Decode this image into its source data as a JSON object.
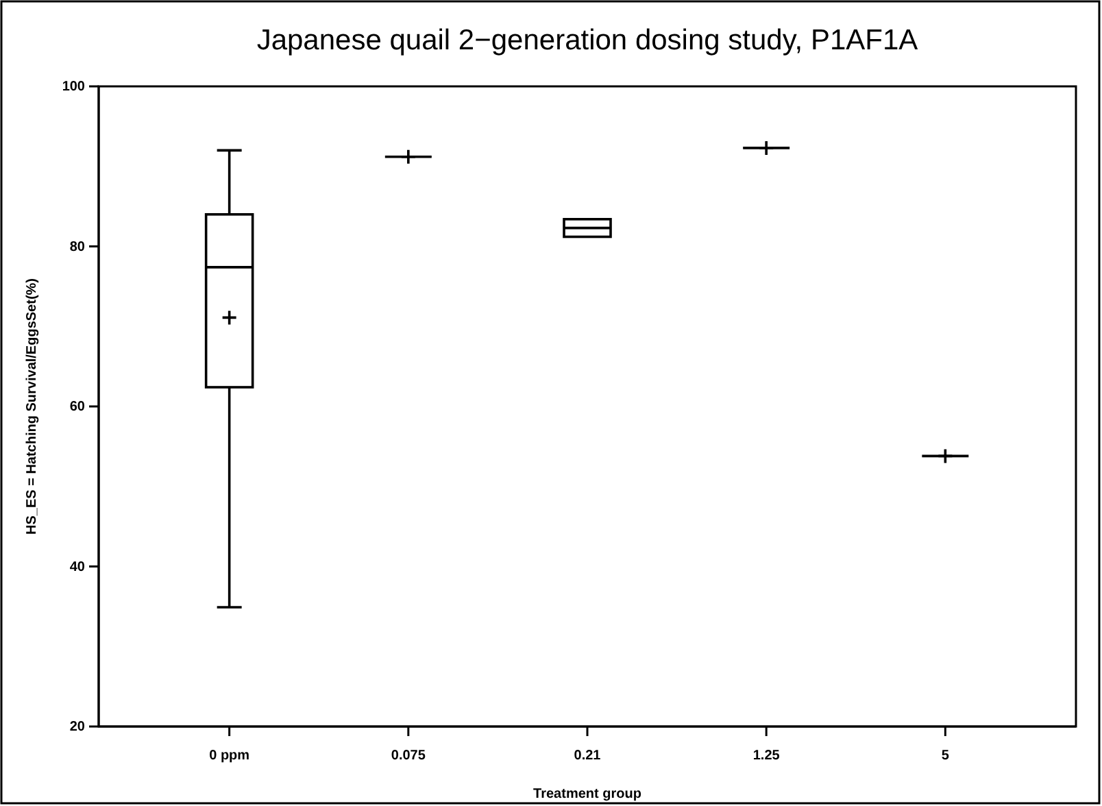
{
  "chart_data": {
    "type": "box",
    "title": "Japanese quail 2−generation dosing study, P1AF1A",
    "xlabel": "Treatment group",
    "ylabel": "HS_ES = Hatching Survival/EggsSet(%)",
    "categories": [
      "0 ppm",
      "0.075",
      "0.21",
      "1.25",
      "5"
    ],
    "boxes": [
      {
        "low": 34.9,
        "q1": 62.4,
        "median": 77.4,
        "q3": 84.0,
        "high": 92.0,
        "mean": 71.1
      },
      {
        "low": 91.2,
        "q1": 91.2,
        "median": 91.2,
        "q3": 91.2,
        "high": 91.2,
        "mean": 91.2
      },
      {
        "low": 81.2,
        "q1": 81.2,
        "median": 82.3,
        "q3": 83.4,
        "high": 83.4
      },
      {
        "low": 92.3,
        "q1": 92.3,
        "median": 92.3,
        "q3": 92.3,
        "high": 92.3,
        "mean": 92.3
      },
      {
        "low": 53.8,
        "q1": 53.8,
        "median": 53.8,
        "q3": 53.8,
        "high": 53.8,
        "mean": 53.8
      }
    ],
    "ylim": [
      20,
      100
    ],
    "yticks": [
      20,
      40,
      60,
      80,
      100
    ],
    "grid": false
  }
}
